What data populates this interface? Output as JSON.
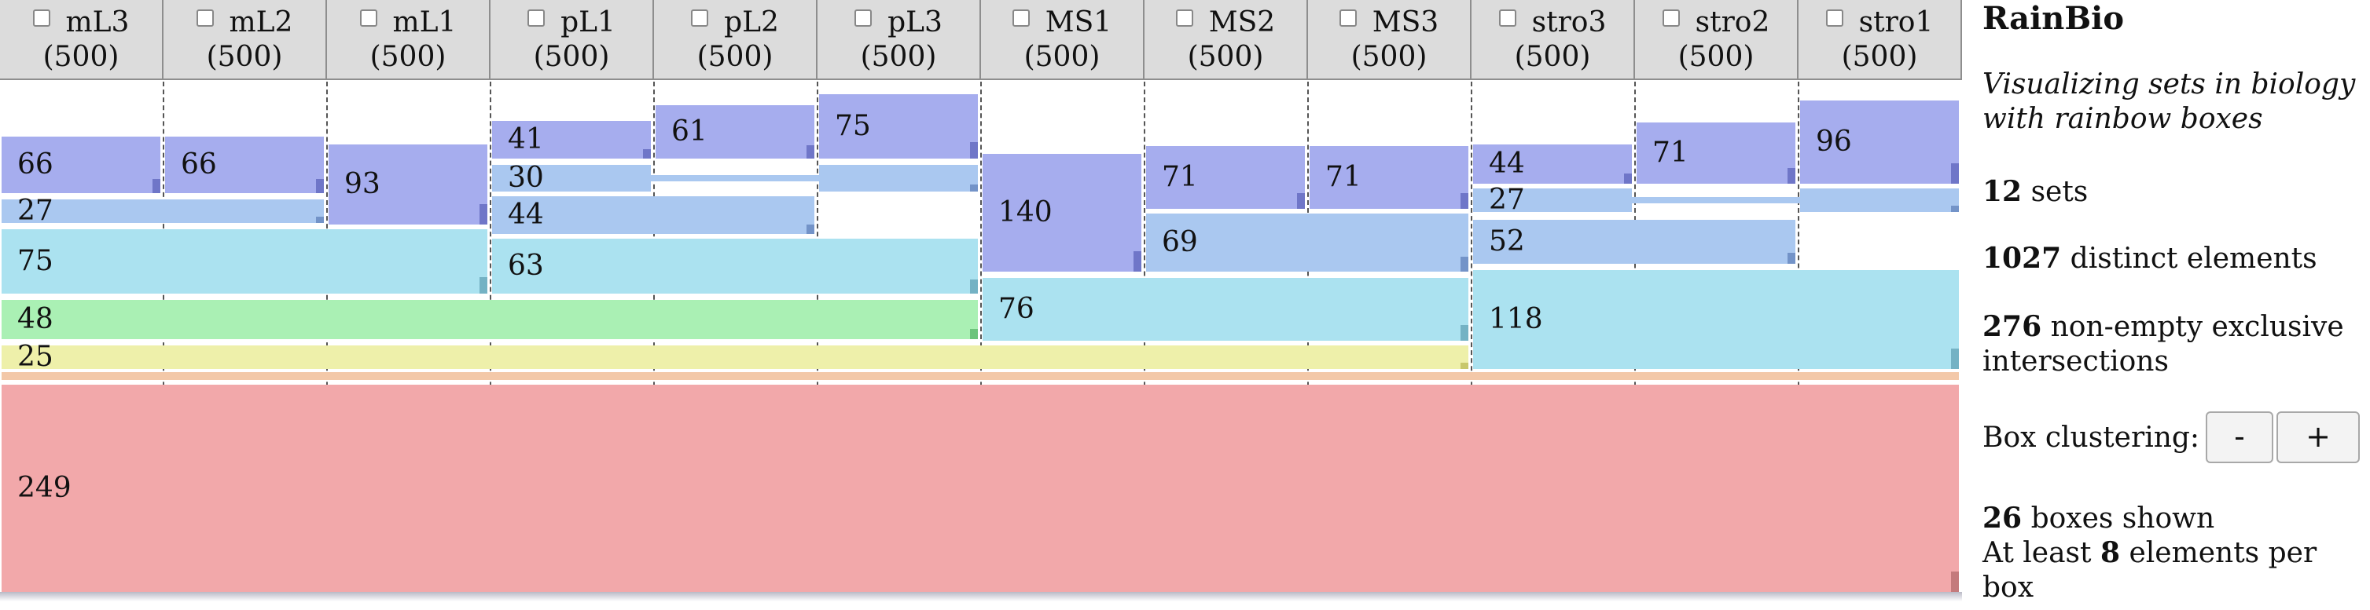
{
  "sets": [
    {
      "name": "mL3",
      "count": "(500)"
    },
    {
      "name": "mL2",
      "count": "(500)"
    },
    {
      "name": "mL1",
      "count": "(500)"
    },
    {
      "name": "pL1",
      "count": "(500)"
    },
    {
      "name": "pL2",
      "count": "(500)"
    },
    {
      "name": "pL3",
      "count": "(500)"
    },
    {
      "name": "MS1",
      "count": "(500)"
    },
    {
      "name": "MS2",
      "count": "(500)"
    },
    {
      "name": "MS3",
      "count": "(500)"
    },
    {
      "name": "stro3",
      "count": "(500)"
    },
    {
      "name": "stro2",
      "count": "(500)"
    },
    {
      "name": "stro1",
      "count": "(500)"
    }
  ],
  "colors": {
    "header_bg": "#dcdcdc",
    "purple": "#a6adee",
    "blue": "#aac8f0",
    "cyan": "#abe2f0",
    "green": "#aaf0b4",
    "yellow": "#eef0aa",
    "orange": "#f3c8a8",
    "red": "#f2a8aa"
  },
  "boxes": [
    {
      "value": "66",
      "sets": [
        "mL3"
      ],
      "color": "purple"
    },
    {
      "value": "66",
      "sets": [
        "mL2"
      ],
      "color": "purple"
    },
    {
      "value": "93",
      "sets": [
        "mL1"
      ],
      "color": "purple"
    },
    {
      "value": "27",
      "sets": [
        "mL3",
        "mL2"
      ],
      "color": "blue"
    },
    {
      "value": "75",
      "sets": [
        "mL3",
        "mL2",
        "mL1"
      ],
      "color": "cyan"
    },
    {
      "value": "41",
      "sets": [
        "pL1"
      ],
      "color": "purple"
    },
    {
      "value": "61",
      "sets": [
        "pL2"
      ],
      "color": "purple"
    },
    {
      "value": "75",
      "sets": [
        "pL3"
      ],
      "color": "purple"
    },
    {
      "value": "30",
      "sets": [
        "pL1",
        "pL3"
      ],
      "color": "blue"
    },
    {
      "value": "44",
      "sets": [
        "pL1",
        "pL2"
      ],
      "color": "blue"
    },
    {
      "value": "63",
      "sets": [
        "pL1",
        "pL2",
        "pL3"
      ],
      "color": "cyan"
    },
    {
      "value": "48",
      "sets": [
        "mL3",
        "mL2",
        "mL1",
        "pL1",
        "pL2",
        "pL3"
      ],
      "color": "green"
    },
    {
      "value": "25",
      "sets": [
        "mL3",
        "mL2",
        "mL1",
        "pL1",
        "pL2",
        "pL3",
        "MS1",
        "MS2",
        "MS3"
      ],
      "color": "yellow"
    },
    {
      "value": "140",
      "sets": [
        "MS1"
      ],
      "color": "purple"
    },
    {
      "value": "71",
      "sets": [
        "MS2"
      ],
      "color": "purple"
    },
    {
      "value": "71",
      "sets": [
        "MS3"
      ],
      "color": "purple"
    },
    {
      "value": "69",
      "sets": [
        "MS2",
        "MS3"
      ],
      "color": "blue"
    },
    {
      "value": "76",
      "sets": [
        "MS1",
        "MS2",
        "MS3"
      ],
      "color": "cyan"
    },
    {
      "value": "44",
      "sets": [
        "stro3"
      ],
      "color": "purple"
    },
    {
      "value": "71",
      "sets": [
        "stro2"
      ],
      "color": "purple"
    },
    {
      "value": "96",
      "sets": [
        "stro1"
      ],
      "color": "purple"
    },
    {
      "value": "27",
      "sets": [
        "stro3",
        "stro1"
      ],
      "color": "blue"
    },
    {
      "value": "52",
      "sets": [
        "stro3",
        "stro2"
      ],
      "color": "blue"
    },
    {
      "value": "118",
      "sets": [
        "stro3",
        "stro2",
        "stro1"
      ],
      "color": "cyan"
    },
    {
      "value": "",
      "sets": [
        "mL3",
        "mL2",
        "mL1",
        "pL1",
        "pL2",
        "pL3",
        "MS1",
        "MS2",
        "MS3",
        "stro3",
        "stro2",
        "stro1"
      ],
      "color": "orange"
    },
    {
      "value": "249",
      "sets": [
        "mL3",
        "mL2",
        "mL1",
        "pL1",
        "pL2",
        "pL3",
        "MS1",
        "MS2",
        "MS3",
        "stro3",
        "stro2",
        "stro1"
      ],
      "color": "red"
    }
  ],
  "sidebar": {
    "title": "RainBio",
    "subtitle": "Visualizing sets in biology with rainbow boxes",
    "sets_count": "12",
    "sets_label": "sets",
    "distinct_count": "1027",
    "distinct_label": "distinct elements",
    "nonempty_count": "276",
    "nonempty_label": "non-empty exclusive intersections",
    "clustering_label": "Box clustering:",
    "minus_label": "-",
    "plus_label": "+",
    "boxes_count": "26",
    "boxes_label": "boxes shown",
    "min_prefix": "At least",
    "min_count": "8",
    "min_suffix": "elements per box"
  }
}
